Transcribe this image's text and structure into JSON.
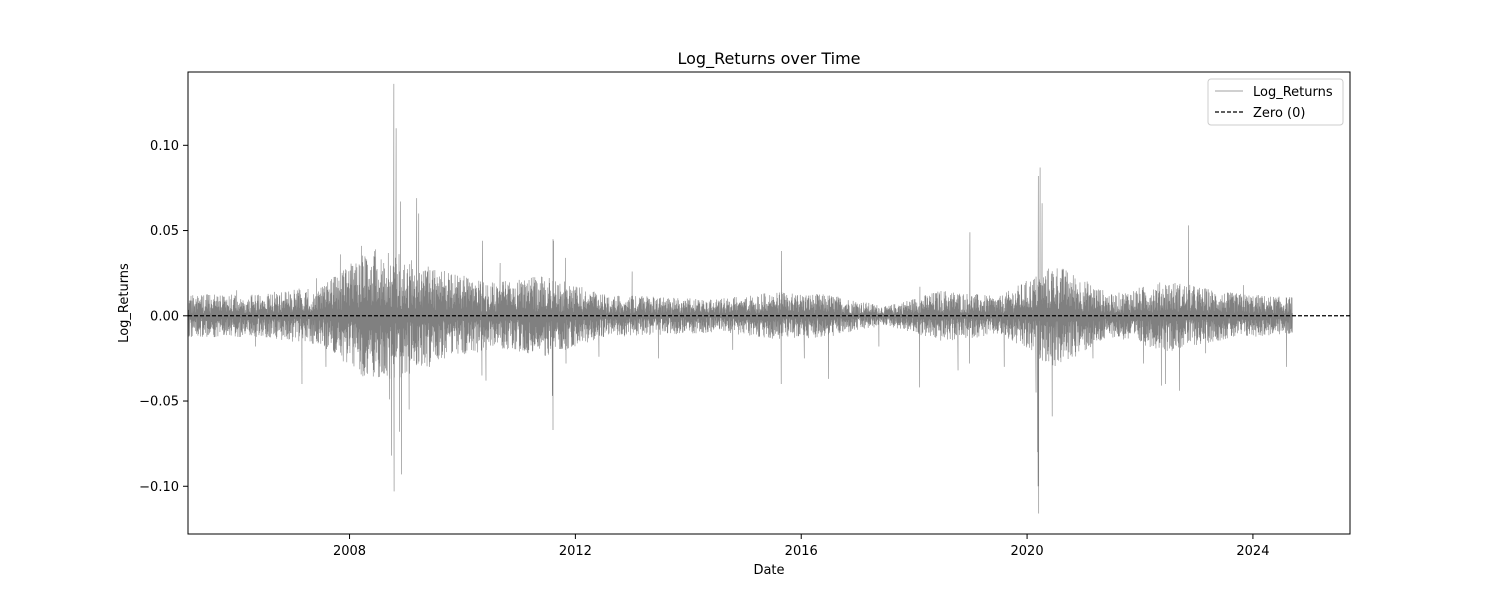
{
  "chart_data": {
    "type": "line",
    "title": "Log_Returns over Time",
    "xlabel": "Date",
    "ylabel": "Log_Returns",
    "xlim": [
      "2005-02-20",
      "2025-09-20"
    ],
    "ylim": [
      -0.128,
      0.143
    ],
    "x_ticks": [
      "2008",
      "2012",
      "2016",
      "2020",
      "2024"
    ],
    "x_tick_dates": [
      "2008-01-01",
      "2012-01-01",
      "2016-01-01",
      "2020-01-01",
      "2024-01-01"
    ],
    "y_ticks": [
      -0.1,
      -0.05,
      0.0,
      0.05,
      0.1
    ],
    "y_tick_labels": [
      "−0.10",
      "−0.05",
      "0.00",
      "0.05",
      "0.10"
    ],
    "grid": false,
    "legend_position": "top-right",
    "date_range": [
      "2005-02-25",
      "2024-09-13"
    ],
    "series": [
      {
        "name": "Log_Returns",
        "color": "#808080",
        "line_style": "solid",
        "points": [
          [
            "2005-02-25",
            0.0
          ],
          [
            "2005-06-01",
            0.012
          ],
          [
            "2005-09-01",
            -0.012
          ],
          [
            "2006-01-01",
            0.015
          ],
          [
            "2006-05-01",
            -0.018
          ],
          [
            "2006-09-01",
            0.014
          ],
          [
            "2007-02-27",
            -0.04
          ],
          [
            "2007-06-01",
            0.022
          ],
          [
            "2007-08-01",
            -0.03
          ],
          [
            "2007-11-01",
            0.036
          ],
          [
            "2008-01-22",
            -0.028
          ],
          [
            "2008-03-17",
            0.041
          ],
          [
            "2008-06-01",
            -0.025
          ],
          [
            "2008-09-15",
            -0.049
          ],
          [
            "2008-09-29",
            -0.082
          ],
          [
            "2008-10-13",
            0.136
          ],
          [
            "2008-10-15",
            -0.103
          ],
          [
            "2008-10-28",
            0.11
          ],
          [
            "2008-11-20",
            -0.068
          ],
          [
            "2008-11-24",
            0.067
          ],
          [
            "2008-12-01",
            -0.093
          ],
          [
            "2009-01-20",
            -0.055
          ],
          [
            "2009-03-10",
            0.069
          ],
          [
            "2009-03-23",
            0.06
          ],
          [
            "2009-06-01",
            -0.03
          ],
          [
            "2009-10-01",
            0.025
          ],
          [
            "2010-01-22",
            -0.022
          ],
          [
            "2010-05-06",
            -0.035
          ],
          [
            "2010-05-10",
            0.044
          ],
          [
            "2010-06-01",
            -0.038
          ],
          [
            "2010-09-01",
            0.031
          ],
          [
            "2011-03-01",
            -0.022
          ],
          [
            "2011-08-04",
            -0.047
          ],
          [
            "2011-08-08",
            -0.067
          ],
          [
            "2011-08-09",
            0.045
          ],
          [
            "2011-08-11",
            0.044
          ],
          [
            "2011-10-27",
            0.034
          ],
          [
            "2011-11-01",
            -0.028
          ],
          [
            "2012-06-01",
            -0.024
          ],
          [
            "2013-01-02",
            0.026
          ],
          [
            "2013-06-20",
            -0.025
          ],
          [
            "2014-10-15",
            -0.02
          ],
          [
            "2015-08-24",
            -0.04
          ],
          [
            "2015-08-26",
            0.038
          ],
          [
            "2016-01-20",
            -0.025
          ],
          [
            "2016-06-24",
            -0.037
          ],
          [
            "2017-05-17",
            -0.018
          ],
          [
            "2018-02-05",
            -0.042
          ],
          [
            "2018-02-06",
            0.017
          ],
          [
            "2018-10-10",
            -0.032
          ],
          [
            "2018-12-24",
            -0.028
          ],
          [
            "2018-12-26",
            0.049
          ],
          [
            "2019-08-05",
            -0.03
          ],
          [
            "2020-02-27",
            -0.045
          ],
          [
            "2020-03-09",
            -0.08
          ],
          [
            "2020-03-12",
            -0.1
          ],
          [
            "2020-03-13",
            0.082
          ],
          [
            "2020-03-16",
            -0.116
          ],
          [
            "2020-03-24",
            0.087
          ],
          [
            "2020-04-06",
            0.066
          ],
          [
            "2020-06-11",
            -0.059
          ],
          [
            "2020-09-01",
            0.023
          ],
          [
            "2021-03-01",
            -0.025
          ],
          [
            "2022-01-24",
            -0.028
          ],
          [
            "2022-05-18",
            -0.041
          ],
          [
            "2022-06-13",
            -0.04
          ],
          [
            "2022-09-13",
            -0.044
          ],
          [
            "2022-11-10",
            0.053
          ],
          [
            "2023-03-01",
            -0.022
          ],
          [
            "2023-11-01",
            0.018
          ],
          [
            "2024-08-05",
            -0.03
          ],
          [
            "2024-09-13",
            0.012
          ]
        ]
      },
      {
        "name": "Zero (0)",
        "color": "#000000",
        "line_style": "dashed",
        "y": 0.0
      }
    ],
    "volatility_envelope": [
      [
        "2005",
        0.009
      ],
      [
        "2006",
        0.009
      ],
      [
        "2007",
        0.013
      ],
      [
        "2008",
        0.03
      ],
      [
        "2009",
        0.02
      ],
      [
        "2010",
        0.014
      ],
      [
        "2011",
        0.017
      ],
      [
        "2012",
        0.009
      ],
      [
        "2013",
        0.008
      ],
      [
        "2014",
        0.007
      ],
      [
        "2015",
        0.01
      ],
      [
        "2016",
        0.009
      ],
      [
        "2017",
        0.004
      ],
      [
        "2018",
        0.011
      ],
      [
        "2019",
        0.008
      ],
      [
        "2020",
        0.022
      ],
      [
        "2021",
        0.009
      ],
      [
        "2022",
        0.015
      ],
      [
        "2023",
        0.01
      ],
      [
        "2024",
        0.008
      ]
    ]
  }
}
